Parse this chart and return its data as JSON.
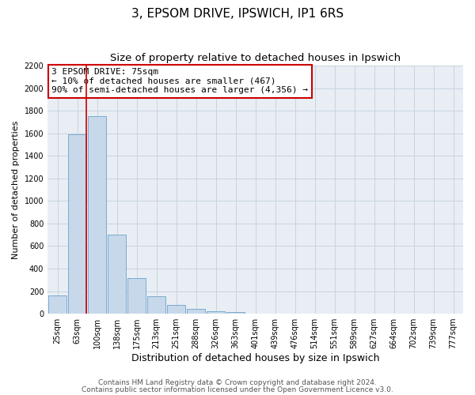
{
  "title": "3, EPSOM DRIVE, IPSWICH, IP1 6RS",
  "subtitle": "Size of property relative to detached houses in Ipswich",
  "xlabel": "Distribution of detached houses by size in Ipswich",
  "ylabel": "Number of detached properties",
  "bar_labels": [
    "25sqm",
    "63sqm",
    "100sqm",
    "138sqm",
    "175sqm",
    "213sqm",
    "251sqm",
    "288sqm",
    "326sqm",
    "363sqm",
    "401sqm",
    "439sqm",
    "476sqm",
    "514sqm",
    "551sqm",
    "589sqm",
    "627sqm",
    "664sqm",
    "702sqm",
    "739sqm",
    "777sqm"
  ],
  "bar_values": [
    160,
    1590,
    1750,
    700,
    315,
    155,
    80,
    45,
    25,
    15,
    0,
    0,
    0,
    0,
    0,
    0,
    0,
    0,
    0,
    0,
    0
  ],
  "bar_color": "#c8d8eb",
  "bar_edge_color": "#7aabce",
  "bar_edge_width": 0.7,
  "vline_color": "#cc0000",
  "vline_x_index": 1,
  "ylim": [
    0,
    2200
  ],
  "yticks": [
    0,
    200,
    400,
    600,
    800,
    1000,
    1200,
    1400,
    1600,
    1800,
    2000,
    2200
  ],
  "annotation_title": "3 EPSOM DRIVE: 75sqm",
  "annotation_line1": "← 10% of detached houses are smaller (467)",
  "annotation_line2": "90% of semi-detached houses are larger (4,356) →",
  "annotation_box_facecolor": "#ffffff",
  "annotation_box_edgecolor": "#cc0000",
  "grid_color": "#c8d4e0",
  "plot_bg_color": "#e8eef4",
  "fig_bg_color": "#ffffff",
  "title_fontsize": 11,
  "subtitle_fontsize": 9.5,
  "xlabel_fontsize": 9,
  "ylabel_fontsize": 8,
  "tick_fontsize": 7,
  "annotation_fontsize": 8,
  "footer_fontsize": 6.5,
  "footer_line1": "Contains HM Land Registry data © Crown copyright and database right 2024.",
  "footer_line2": "Contains public sector information licensed under the Open Government Licence v3.0."
}
